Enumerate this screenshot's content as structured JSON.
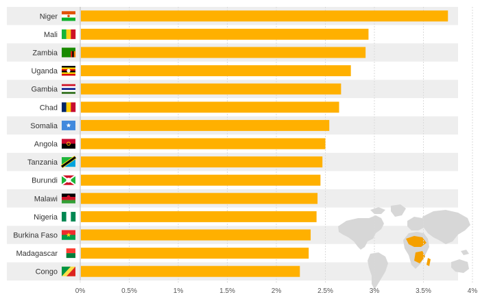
{
  "chart_data": {
    "type": "bar",
    "orientation": "horizontal",
    "title": "",
    "xlabel": "",
    "ylabel": "",
    "xlim": [
      0,
      4
    ],
    "grid": true,
    "categories": [
      "Niger",
      "Mali",
      "Zambia",
      "Uganda",
      "Gambia",
      "Chad",
      "Somalia",
      "Angola",
      "Tanzania",
      "Burundi",
      "Malawi",
      "Nigeria",
      "Burkina Faso",
      "Madagascar",
      "Congo"
    ],
    "values": [
      3.75,
      2.94,
      2.91,
      2.76,
      2.66,
      2.64,
      2.54,
      2.5,
      2.47,
      2.45,
      2.42,
      2.41,
      2.35,
      2.33,
      2.24
    ],
    "tick_values": [
      0,
      0.5,
      1,
      1.5,
      2,
      2.5,
      3,
      3.5,
      4
    ],
    "tick_labels": [
      "0%",
      "0.5%",
      "1%",
      "1.5%",
      "2%",
      "2.5%",
      "3%",
      "3.5%",
      "4%"
    ],
    "bar_color": "#FFB000",
    "stripe_color": "#EEEEEE",
    "grid_color": "#DADADA",
    "map_color": "#D7D7D7",
    "highlight_color": "#F5A000",
    "flag_icons": [
      "niger-flag-icon",
      "mali-flag-icon",
      "zambia-flag-icon",
      "uganda-flag-icon",
      "gambia-flag-icon",
      "chad-flag-icon",
      "somalia-flag-icon",
      "angola-flag-icon",
      "tanzania-flag-icon",
      "burundi-flag-icon",
      "malawi-flag-icon",
      "nigeria-flag-icon",
      "burkina-faso-flag-icon",
      "madagascar-flag-icon",
      "congo-flag-icon"
    ]
  }
}
